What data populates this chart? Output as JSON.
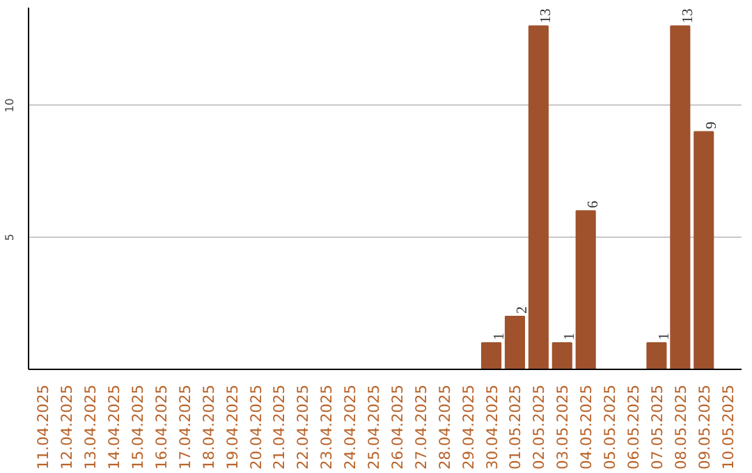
{
  "chart_data": {
    "type": "bar",
    "categories": [
      "11.04.2025",
      "12.04.2025",
      "13.04.2025",
      "14.04.2025",
      "15.04.2025",
      "16.04.2025",
      "17.04.2025",
      "18.04.2025",
      "19.04.2025",
      "20.04.2025",
      "21.04.2025",
      "22.04.2025",
      "23.04.2025",
      "24.04.2025",
      "25.04.2025",
      "26.04.2025",
      "27.04.2025",
      "28.04.2025",
      "29.04.2025",
      "30.04.2025",
      "01.05.2025",
      "02.05.2025",
      "03.05.2025",
      "04.05.2025",
      "05.05.2025",
      "06.05.2025",
      "07.05.2025",
      "08.05.2025",
      "09.05.2025",
      "10.05.2025"
    ],
    "values": [
      0,
      0,
      0,
      0,
      0,
      0,
      0,
      0,
      0,
      0,
      0,
      0,
      0,
      0,
      0,
      0,
      0,
      0,
      0,
      1,
      2,
      13,
      1,
      6,
      0,
      0,
      1,
      13,
      9,
      0
    ],
    "value_labels": [
      null,
      null,
      null,
      null,
      null,
      null,
      null,
      null,
      null,
      null,
      null,
      null,
      null,
      null,
      null,
      null,
      null,
      null,
      null,
      "1",
      "2",
      "13",
      "1",
      "6",
      null,
      null,
      "1",
      "13",
      "9",
      null
    ],
    "color": "#a0522d",
    "ylim": [
      0,
      13.7
    ],
    "yticks": [
      5,
      10
    ],
    "grid": "y"
  }
}
